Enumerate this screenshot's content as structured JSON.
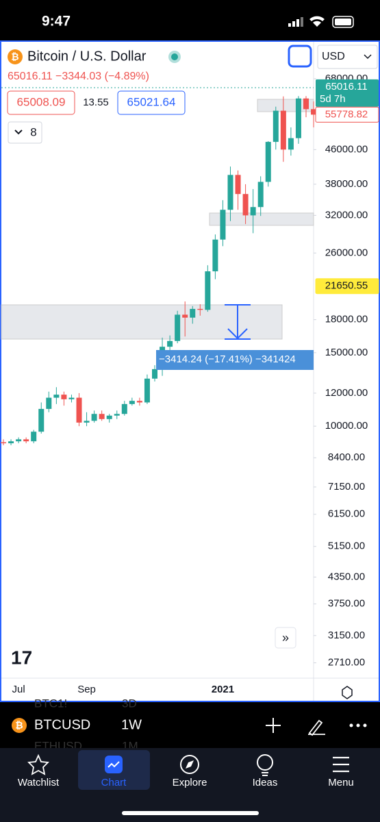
{
  "status": {
    "time": "9:47"
  },
  "header": {
    "symbol_name": "Bitcoin / U.S. Dollar",
    "quote": "65016.11 −3344.03 (−4.89%)",
    "bid": "65008.09",
    "spread": "13.55",
    "ask": "65021.64",
    "indicators": "8",
    "currency": "USD"
  },
  "chart_data": {
    "type": "candlestick",
    "categories": [
      null,
      null,
      "Jul",
      null,
      null,
      null,
      null,
      null,
      null,
      null,
      null,
      "Sep",
      null,
      null,
      null,
      null,
      null,
      null,
      null,
      null,
      null,
      null,
      null,
      null,
      null,
      null,
      null,
      null,
      null,
      "2021",
      null,
      null,
      null,
      null,
      null,
      null,
      null,
      null,
      null,
      null,
      null,
      null
    ],
    "open": [
      9150,
      9100,
      9200,
      9300,
      9200,
      9700,
      11000,
      11700,
      11900,
      11600,
      11700,
      10200,
      10300,
      10700,
      10400,
      10600,
      10700,
      11300,
      11500,
      11400,
      13000,
      13700,
      15500,
      16000,
      18500,
      18200,
      19100,
      19000,
      23500,
      28000,
      33000,
      40000,
      36000,
      32000,
      33500,
      38500,
      48000,
      57000,
      46000,
      49000,
      61000,
      57500
    ],
    "high": [
      9300,
      9300,
      9400,
      9400,
      9800,
      11400,
      12100,
      12400,
      12100,
      11900,
      12000,
      10800,
      10900,
      10900,
      10700,
      10900,
      11500,
      11700,
      11700,
      13300,
      14000,
      16300,
      16500,
      18900,
      19900,
      19400,
      19600,
      24300,
      28800,
      34800,
      41900,
      41000,
      38000,
      37000,
      39700,
      48200,
      58300,
      61700,
      52000,
      61800,
      61800,
      60000
    ],
    "low": [
      9000,
      9000,
      9100,
      9100,
      9100,
      9600,
      10800,
      11300,
      11200,
      11400,
      10000,
      10000,
      10200,
      10300,
      10200,
      10400,
      10600,
      11200,
      11200,
      11300,
      12800,
      13200,
      14800,
      15800,
      16400,
      17600,
      18400,
      18800,
      22500,
      27000,
      31000,
      33000,
      30500,
      29000,
      31900,
      37500,
      46000,
      43000,
      44500,
      47500,
      55000,
      52000
    ],
    "close": [
      9100,
      9200,
      9300,
      9200,
      9700,
      11000,
      11700,
      11900,
      11600,
      11700,
      10200,
      10300,
      10700,
      10400,
      10600,
      10700,
      11300,
      11500,
      11400,
      13000,
      13700,
      15500,
      16000,
      18500,
      18200,
      19100,
      19000,
      23500,
      28000,
      33000,
      40000,
      36000,
      32000,
      33500,
      38500,
      48000,
      57000,
      46000,
      49000,
      61000,
      57500,
      55780
    ],
    "up_color": "#26a69a",
    "down_color": "#ef5350",
    "log_scale": true,
    "ylim": [
      2490,
      83700
    ],
    "yticks": [
      {
        "value": 68000,
        "label": "68000.00"
      },
      {
        "value": 46000,
        "label": "46000.00"
      },
      {
        "value": 38000,
        "label": "38000.00"
      },
      {
        "value": 32000,
        "label": "32000.00"
      },
      {
        "value": 26000,
        "label": "26000.00"
      },
      {
        "value": 18000,
        "label": "18000.00"
      },
      {
        "value": 15000,
        "label": "15000.00"
      },
      {
        "value": 12000,
        "label": "12000.00"
      },
      {
        "value": 10000,
        "label": "10000.00"
      },
      {
        "value": 8400,
        "label": "8400.00"
      },
      {
        "value": 7150,
        "label": "7150.00"
      },
      {
        "value": 6150,
        "label": "6150.00"
      },
      {
        "value": 5150,
        "label": "5150.00"
      },
      {
        "value": 4350,
        "label": "4350.00"
      },
      {
        "value": 3750,
        "label": "3750.00"
      },
      {
        "value": 3150,
        "label": "3150.00"
      },
      {
        "value": 2710,
        "label": "2710.00"
      }
    ],
    "last_price": {
      "value": 65016.11,
      "countdown": "5d 7h"
    },
    "price_labels": [
      {
        "value": 55778.82,
        "color": "#ef5350"
      },
      {
        "value": 21650.55,
        "color": "#ffeb3b"
      }
    ],
    "measure_label": "−3414.24 (−17.41%) −341424"
  },
  "toolbar": {
    "symbol": "BTCUSD",
    "interval": "1W",
    "ghost": [
      "BTC1!",
      "3D",
      "ETHUSD",
      "1M"
    ]
  },
  "nav": [
    "Watchlist",
    "Chart",
    "Explore",
    "Ideas",
    "Menu"
  ]
}
